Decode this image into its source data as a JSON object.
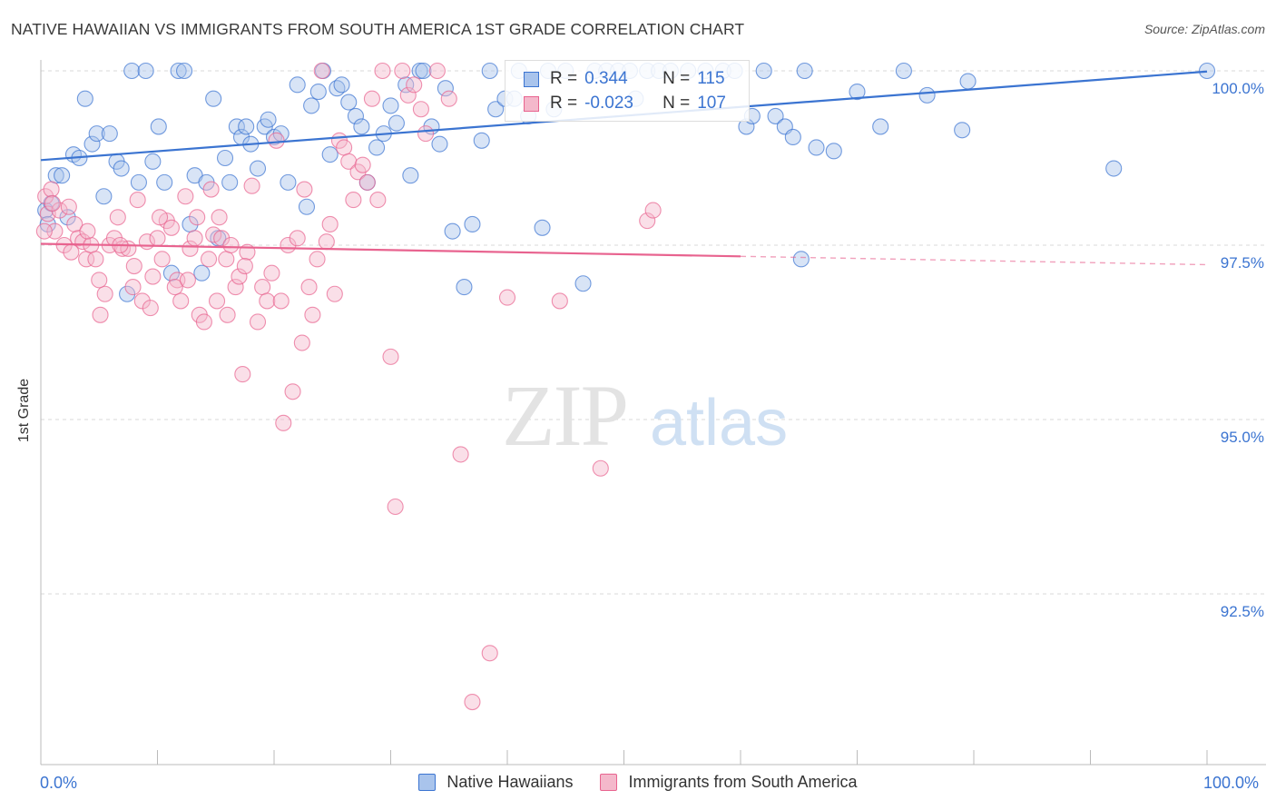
{
  "title": "NATIVE HAWAIIAN VS IMMIGRANTS FROM SOUTH AMERICA 1ST GRADE CORRELATION CHART",
  "source": "Source: ZipAtlas.com",
  "watermark": {
    "zip": "ZIP",
    "atlas": "atlas"
  },
  "legend": {
    "r_label": "R =",
    "n_label": "N =",
    "series": [
      {
        "r": "0.344",
        "n": "115",
        "color": "#a9c4ec"
      },
      {
        "r": "-0.023",
        "n": "107",
        "color": "#f4b8cb"
      }
    ]
  },
  "bottom_legend": [
    "Native Hawaiians",
    "Immigrants from South America"
  ],
  "x_axis_labels": {
    "left": "0.0%",
    "right": "100.0%"
  },
  "colors": {
    "blue": "#3b74d1",
    "blue_fill": "#a9c4ec",
    "pink": "#e8638f",
    "pink_fill": "#f4b8cb",
    "grid": "#d9d9d9",
    "tick_text": "#3b74d1"
  },
  "chart_data": {
    "type": "scatter",
    "title": "NATIVE HAWAIIAN VS IMMIGRANTS FROM SOUTH AMERICA 1ST GRADE CORRELATION CHART",
    "xlabel": "",
    "ylabel": "1st Grade",
    "xlim": [
      0,
      100
    ],
    "ylim": [
      90.0,
      100.4
    ],
    "y_ticks": [
      92.5,
      95.0,
      97.5,
      100.0
    ],
    "y_tick_labels": [
      "92.5%",
      "95.0%",
      "97.5%",
      "100.0%"
    ],
    "grid": true,
    "legend_position": "top-center",
    "series": [
      {
        "name": "Native Hawaiians",
        "color": "#3b74d1",
        "trend": {
          "x": [
            0,
            100
          ],
          "y": [
            98.72,
            99.99
          ]
        },
        "points": [
          [
            0.4,
            98.0
          ],
          [
            0.6,
            97.8
          ],
          [
            0.9,
            98.1
          ],
          [
            1.3,
            98.5
          ],
          [
            1.8,
            98.5
          ],
          [
            2.3,
            97.9
          ],
          [
            2.8,
            98.8
          ],
          [
            3.3,
            98.75
          ],
          [
            3.8,
            99.6
          ],
          [
            4.4,
            98.95
          ],
          [
            4.8,
            99.1
          ],
          [
            5.4,
            98.2
          ],
          [
            5.9,
            99.1
          ],
          [
            6.5,
            98.7
          ],
          [
            6.9,
            98.6
          ],
          [
            7.4,
            96.8
          ],
          [
            7.8,
            100.0
          ],
          [
            8.4,
            98.4
          ],
          [
            9.0,
            100.0
          ],
          [
            9.6,
            98.7
          ],
          [
            10.1,
            99.2
          ],
          [
            10.6,
            98.4
          ],
          [
            11.2,
            97.1
          ],
          [
            11.8,
            100.0
          ],
          [
            12.3,
            100.0
          ],
          [
            12.8,
            97.8
          ],
          [
            13.2,
            98.5
          ],
          [
            13.8,
            97.1
          ],
          [
            14.2,
            98.4
          ],
          [
            14.8,
            99.6
          ],
          [
            15.2,
            97.6
          ],
          [
            15.8,
            98.75
          ],
          [
            16.2,
            98.4
          ],
          [
            16.8,
            99.2
          ],
          [
            17.2,
            99.05
          ],
          [
            17.6,
            99.2
          ],
          [
            18.0,
            98.95
          ],
          [
            18.6,
            98.6
          ],
          [
            19.2,
            99.2
          ],
          [
            19.5,
            99.3
          ],
          [
            20.0,
            99.05
          ],
          [
            20.6,
            99.1
          ],
          [
            21.2,
            98.4
          ],
          [
            22.0,
            99.8
          ],
          [
            22.8,
            98.05
          ],
          [
            23.2,
            99.5
          ],
          [
            23.8,
            99.7
          ],
          [
            24.2,
            100.0
          ],
          [
            24.8,
            98.8
          ],
          [
            25.4,
            99.75
          ],
          [
            25.8,
            99.8
          ],
          [
            26.4,
            99.55
          ],
          [
            27.0,
            99.35
          ],
          [
            27.5,
            99.2
          ],
          [
            28.0,
            98.4
          ],
          [
            28.8,
            98.9
          ],
          [
            29.4,
            99.1
          ],
          [
            30.0,
            99.5
          ],
          [
            30.5,
            99.25
          ],
          [
            31.3,
            99.8
          ],
          [
            31.7,
            98.5
          ],
          [
            32.5,
            100.0
          ],
          [
            32.8,
            100.0
          ],
          [
            33.5,
            99.2
          ],
          [
            34.2,
            98.95
          ],
          [
            34.7,
            99.75
          ],
          [
            35.3,
            97.7
          ],
          [
            36.3,
            96.9
          ],
          [
            37.0,
            97.8
          ],
          [
            37.8,
            99.0
          ],
          [
            38.5,
            100.0
          ],
          [
            39.0,
            99.45
          ],
          [
            39.8,
            99.6
          ],
          [
            40.6,
            99.6
          ],
          [
            41.0,
            100.0
          ],
          [
            41.8,
            99.35
          ],
          [
            43.0,
            97.75
          ],
          [
            43.5,
            100.0
          ],
          [
            44.0,
            99.45
          ],
          [
            45.0,
            100.0
          ],
          [
            46.5,
            96.95
          ],
          [
            47.5,
            100.0
          ],
          [
            48.5,
            100.0
          ],
          [
            49.5,
            100.0
          ],
          [
            50.5,
            100.0
          ],
          [
            51.0,
            99.6
          ],
          [
            52.0,
            100.0
          ],
          [
            53.0,
            100.0
          ],
          [
            54.0,
            100.0
          ],
          [
            55.5,
            100.0
          ],
          [
            57.0,
            100.0
          ],
          [
            58.5,
            100.0
          ],
          [
            59.5,
            100.0
          ],
          [
            60.5,
            99.2
          ],
          [
            61.0,
            99.35
          ],
          [
            62.0,
            100.0
          ],
          [
            63.0,
            99.35
          ],
          [
            63.8,
            99.2
          ],
          [
            64.5,
            99.05
          ],
          [
            65.5,
            100.0
          ],
          [
            65.2,
            97.3
          ],
          [
            66.5,
            98.9
          ],
          [
            68.0,
            98.85
          ],
          [
            70.0,
            99.7
          ],
          [
            72.0,
            99.2
          ],
          [
            74.0,
            100.0
          ],
          [
            76.0,
            99.65
          ],
          [
            79.0,
            99.15
          ],
          [
            79.5,
            99.85
          ],
          [
            92.0,
            98.6
          ],
          [
            100.0,
            100.0
          ]
        ]
      },
      {
        "name": "Immigrants from South America",
        "color": "#e8638f",
        "trend": {
          "x": [
            0,
            60
          ],
          "y": [
            97.52,
            97.34
          ]
        },
        "trend_dashed": {
          "x": [
            60,
            100
          ],
          "y": [
            97.34,
            97.22
          ]
        },
        "points": [
          [
            0.4,
            98.2
          ],
          [
            0.6,
            97.95
          ],
          [
            0.9,
            98.3
          ],
          [
            1.2,
            97.7
          ],
          [
            1.6,
            98.0
          ],
          [
            2.0,
            97.5
          ],
          [
            2.4,
            98.05
          ],
          [
            2.9,
            97.8
          ],
          [
            3.2,
            97.6
          ],
          [
            3.6,
            97.55
          ],
          [
            3.9,
            97.3
          ],
          [
            4.3,
            97.5
          ],
          [
            4.7,
            97.3
          ],
          [
            5.1,
            96.5
          ],
          [
            5.5,
            96.8
          ],
          [
            5.9,
            97.5
          ],
          [
            6.3,
            97.6
          ],
          [
            6.6,
            97.9
          ],
          [
            7.0,
            97.45
          ],
          [
            7.5,
            97.45
          ],
          [
            7.9,
            96.9
          ],
          [
            8.3,
            98.15
          ],
          [
            8.7,
            96.7
          ],
          [
            9.1,
            97.55
          ],
          [
            9.6,
            97.05
          ],
          [
            10.0,
            97.6
          ],
          [
            10.4,
            97.3
          ],
          [
            10.8,
            97.85
          ],
          [
            11.2,
            97.75
          ],
          [
            11.7,
            97.0
          ],
          [
            12.0,
            96.7
          ],
          [
            12.4,
            98.2
          ],
          [
            12.8,
            97.45
          ],
          [
            13.2,
            97.6
          ],
          [
            13.6,
            96.5
          ],
          [
            14.0,
            96.4
          ],
          [
            14.4,
            97.3
          ],
          [
            14.8,
            97.65
          ],
          [
            15.1,
            96.7
          ],
          [
            15.5,
            97.6
          ],
          [
            15.9,
            97.3
          ],
          [
            16.3,
            97.5
          ],
          [
            16.7,
            96.9
          ],
          [
            17.0,
            97.05
          ],
          [
            17.3,
            95.65
          ],
          [
            17.7,
            97.4
          ],
          [
            18.1,
            98.35
          ],
          [
            18.6,
            96.4
          ],
          [
            19.0,
            96.9
          ],
          [
            19.4,
            96.7
          ],
          [
            19.8,
            97.1
          ],
          [
            20.2,
            99.0
          ],
          [
            20.6,
            96.7
          ],
          [
            20.8,
            94.95
          ],
          [
            21.2,
            97.5
          ],
          [
            21.6,
            95.4
          ],
          [
            22.0,
            97.6
          ],
          [
            22.4,
            96.1
          ],
          [
            22.6,
            98.3
          ],
          [
            23.0,
            96.9
          ],
          [
            23.3,
            96.5
          ],
          [
            23.7,
            97.3
          ],
          [
            24.1,
            100.0
          ],
          [
            24.5,
            97.55
          ],
          [
            24.8,
            97.8
          ],
          [
            25.2,
            96.8
          ],
          [
            25.6,
            99.0
          ],
          [
            26.0,
            98.9
          ],
          [
            26.4,
            98.7
          ],
          [
            26.8,
            98.15
          ],
          [
            27.2,
            98.55
          ],
          [
            27.6,
            98.65
          ],
          [
            28.0,
            98.4
          ],
          [
            28.4,
            99.6
          ],
          [
            28.9,
            98.15
          ],
          [
            29.3,
            100.0
          ],
          [
            30.0,
            95.9
          ],
          [
            30.4,
            93.75
          ],
          [
            31.0,
            100.0
          ],
          [
            31.5,
            99.65
          ],
          [
            32.0,
            99.8
          ],
          [
            32.6,
            99.45
          ],
          [
            33.0,
            99.1
          ],
          [
            34.0,
            100.0
          ],
          [
            35.0,
            99.6
          ],
          [
            36.0,
            94.5
          ],
          [
            37.0,
            90.95
          ],
          [
            38.5,
            91.65
          ],
          [
            40.0,
            96.75
          ],
          [
            44.5,
            96.7
          ],
          [
            48.0,
            94.3
          ],
          [
            52.0,
            97.85
          ],
          [
            52.5,
            98.0
          ],
          [
            0.3,
            97.7
          ],
          [
            1.0,
            98.1
          ],
          [
            2.6,
            97.4
          ],
          [
            4.0,
            97.7
          ],
          [
            5.0,
            97.0
          ],
          [
            6.8,
            97.5
          ],
          [
            8.0,
            97.2
          ],
          [
            9.4,
            96.6
          ],
          [
            10.2,
            97.9
          ],
          [
            11.5,
            96.9
          ],
          [
            12.6,
            97.0
          ],
          [
            13.4,
            97.9
          ],
          [
            14.6,
            98.3
          ],
          [
            15.3,
            97.9
          ],
          [
            16.0,
            96.5
          ],
          [
            17.5,
            97.2
          ]
        ]
      }
    ]
  }
}
